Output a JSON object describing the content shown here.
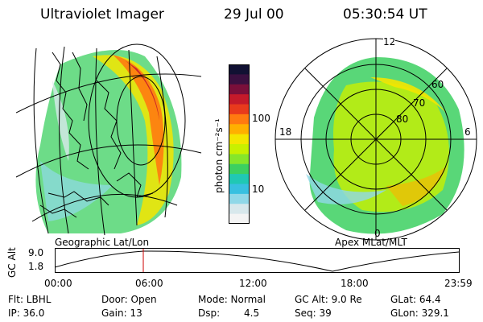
{
  "header": {
    "instrument": "Ultraviolet Imager",
    "date": "29 Jul 00",
    "time": "05:30:54 UT"
  },
  "left_panel": {
    "caption": "Geographic Lat/Lon"
  },
  "right_panel": {
    "caption": "Apex MLat/MLT",
    "mlt_labels": {
      "top": "12",
      "bottom": "0",
      "left": "18",
      "right": "6"
    },
    "lat_labels": [
      "60",
      "70",
      "80"
    ]
  },
  "colorbar": {
    "label": "photon cm⁻²s⁻¹",
    "ticks": [
      "100",
      "10"
    ],
    "colors": [
      "#111133",
      "#3a1040",
      "#7a0f3a",
      "#c41a2a",
      "#e83a1c",
      "#ff7a10",
      "#ffb000",
      "#f4e600",
      "#c8f000",
      "#86e62a",
      "#3cd060",
      "#20c8b4",
      "#38c0e0",
      "#90d8e8",
      "#d8e8ec",
      "#f4f4f4"
    ]
  },
  "altitude_plot": {
    "ylabel": "GC Alt",
    "yticks": [
      "9.0",
      "1.8"
    ],
    "xticks": [
      "00:00",
      "06:00",
      "12:00",
      "18:00",
      "23:59"
    ],
    "marker_color": "#cc0000"
  },
  "info": {
    "flt": "Flt: LBHL",
    "ip": "IP: 36.0",
    "door": "Door: Open",
    "gain": "Gain: 13",
    "mode": "Mode: Normal",
    "dsp_label": "Dsp:",
    "dsp_value": "4.5",
    "gcalt": "GC Alt: 9.0 Re",
    "seq": "Seq: 39",
    "glat": "GLat: 64.4",
    "glon": "GLon: 329.1"
  }
}
